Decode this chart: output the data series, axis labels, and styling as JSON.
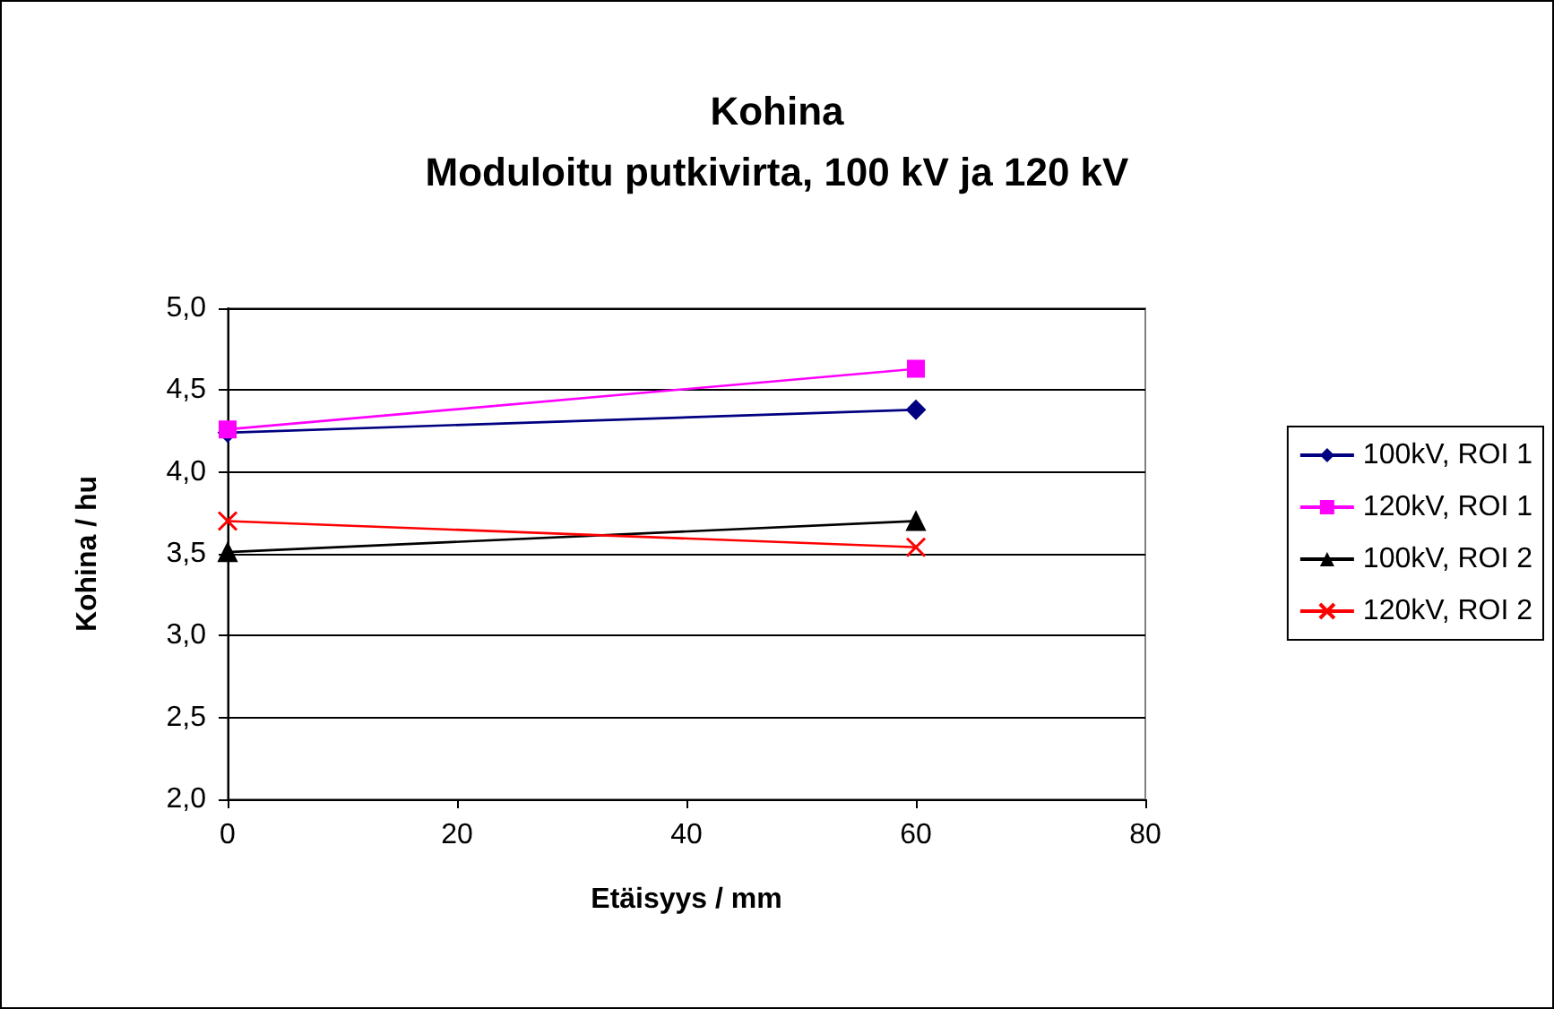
{
  "chart_data": {
    "type": "line",
    "title": "Kohina",
    "subtitle": "Moduloitu putkivirta, 100 kV ja 120 kV",
    "xlabel": "Etäisyys / mm",
    "ylabel": "Kohina / hu",
    "x": [
      0,
      60
    ],
    "series": [
      {
        "name": "100kV, ROI 1",
        "color": "#000080",
        "marker": "diamond",
        "values": [
          4.24,
          4.38
        ]
      },
      {
        "name": "120kV, ROI 1",
        "color": "#ff00ff",
        "marker": "square",
        "values": [
          4.26,
          4.63
        ]
      },
      {
        "name": "100kV, ROI 2",
        "color": "#000000",
        "marker": "triangle",
        "values": [
          3.51,
          3.7
        ]
      },
      {
        "name": "120kV, ROI 2",
        "color": "#ff0000",
        "marker": "cross",
        "values": [
          3.7,
          3.54
        ]
      }
    ],
    "xlim": [
      0,
      80
    ],
    "xticks": [
      0,
      20,
      40,
      60,
      80
    ],
    "ylim": [
      2,
      5
    ],
    "yticks": [
      {
        "value": 2,
        "label": "2,0"
      },
      {
        "value": 2.5,
        "label": "2,5"
      },
      {
        "value": 3,
        "label": "3,0"
      },
      {
        "value": 3.5,
        "label": "3,5"
      },
      {
        "value": 4,
        "label": "4,0"
      },
      {
        "value": 4.5,
        "label": "4,5"
      },
      {
        "value": 5,
        "label": "5,0"
      }
    ],
    "grid": "y",
    "legend": "right",
    "line_style": "solid"
  }
}
